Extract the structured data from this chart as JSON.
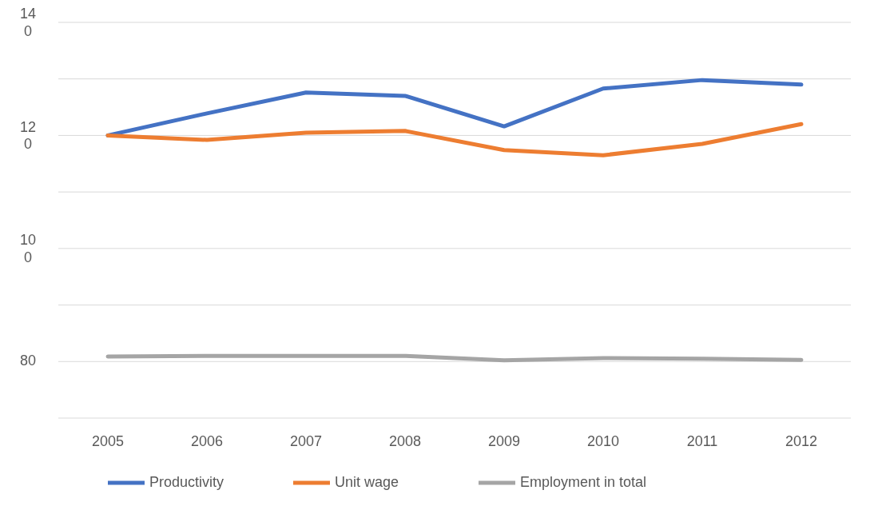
{
  "chart_data": {
    "type": "line",
    "categories": [
      "2005",
      "2006",
      "2007",
      "2008",
      "2009",
      "2010",
      "2011",
      "2012"
    ],
    "series": [
      {
        "name": "Productivity",
        "color": "#4472c4",
        "values": [
          120,
          123.9,
          127.6,
          127.0,
          121.6,
          128.3,
          129.8,
          129.0
        ]
      },
      {
        "name": "Unit wage",
        "color": "#ed7d31",
        "values": [
          120,
          119.2,
          120.5,
          120.8,
          117.4,
          116.5,
          118.5,
          122.0
        ]
      },
      {
        "name": "Employment in total",
        "color": "#a5a5a5",
        "values": [
          80.9,
          81.0,
          81.0,
          81.0,
          80.2,
          80.6,
          80.5,
          80.3
        ]
      }
    ],
    "ylim": [
      70,
      140
    ],
    "yticks": [
      140,
      {
        "value": 130,
        "label": null
      },
      120,
      {
        "value": 110,
        "label": null
      },
      100,
      {
        "value": 90,
        "label": null
      },
      80,
      {
        "value": 70,
        "label": null
      }
    ],
    "grid": "y",
    "legend": "bottom",
    "marker": "none",
    "line_style": "solid"
  }
}
